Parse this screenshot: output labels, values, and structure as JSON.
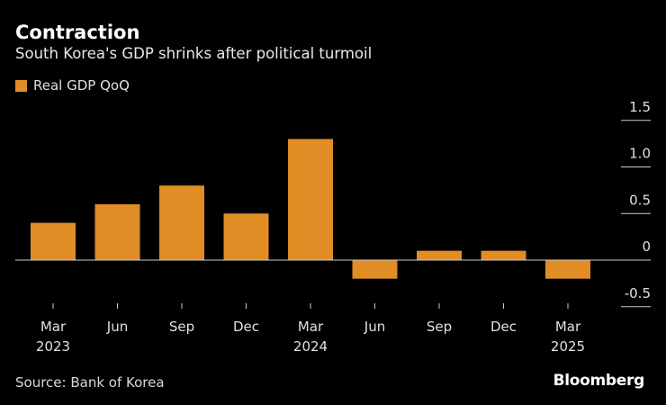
{
  "chart_data": {
    "type": "bar",
    "title": "Contraction",
    "subtitle": "South Korea's GDP shrinks after political turmoil",
    "series": [
      {
        "name": "Real GDP QoQ",
        "values": [
          0.4,
          0.6,
          0.8,
          0.5,
          1.3,
          -0.2,
          0.1,
          0.1,
          -0.2
        ]
      }
    ],
    "categories": [
      "Mar 2023",
      "Jun 2023",
      "Sep 2023",
      "Dec 2023",
      "Mar 2024",
      "Jun 2024",
      "Sep 2024",
      "Dec 2024",
      "Mar 2025"
    ],
    "x_tick_labels": [
      [
        "Mar",
        "2023"
      ],
      [
        "Jun",
        ""
      ],
      [
        "Sep",
        ""
      ],
      [
        "Dec",
        ""
      ],
      [
        "Mar",
        "2024"
      ],
      [
        "Jun",
        ""
      ],
      [
        "Sep",
        ""
      ],
      [
        "Dec",
        ""
      ],
      [
        "Mar",
        "2025"
      ]
    ],
    "y_ticks": [
      -0.5,
      0,
      0.5,
      1.0,
      1.5
    ],
    "y_tick_labels": [
      "-0.5",
      "0",
      "0.5",
      "1.0",
      "1.5"
    ],
    "ylim": [
      -0.5,
      1.5
    ],
    "y_axis_position": "right",
    "legend_placement": "top-left",
    "grid": false,
    "colors": {
      "bar": "#e08d25",
      "background": "#000000",
      "zero_line": "#cccccc"
    }
  },
  "source": "Source: Bank of Korea",
  "brand": "Bloomberg"
}
